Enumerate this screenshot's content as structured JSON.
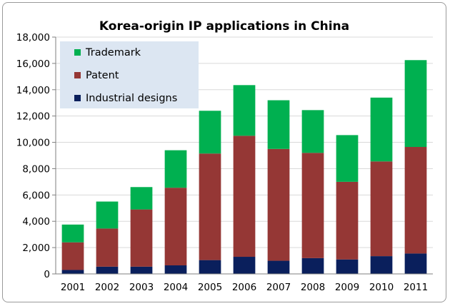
{
  "chart_data": {
    "type": "bar",
    "stacked": true,
    "title": "Korea-origin IP applications in China",
    "xlabel": "",
    "ylabel": "",
    "categories": [
      "2001",
      "2002",
      "2003",
      "2004",
      "2005",
      "2006",
      "2007",
      "2008",
      "2009",
      "2010",
      "2011"
    ],
    "ylim": [
      0,
      18000
    ],
    "yticks": [
      "0",
      "2,000",
      "4,000",
      "6,000",
      "8,000",
      "10,000",
      "12,000",
      "14,000",
      "16,000",
      "18,000"
    ],
    "grid": true,
    "legend": "top-left",
    "series": [
      {
        "name": "Industrial designs",
        "color": "#0a1f5c",
        "values": [
          300,
          550,
          550,
          650,
          1050,
          1300,
          1000,
          1200,
          1100,
          1350,
          1550
        ]
      },
      {
        "name": "Patent",
        "color": "#953735",
        "values": [
          2100,
          2900,
          4350,
          5900,
          8100,
          9200,
          8500,
          8000,
          5900,
          7200,
          8100
        ]
      },
      {
        "name": "Trademark",
        "color": "#00b050",
        "values": [
          1350,
          2050,
          1700,
          2850,
          3250,
          3850,
          3700,
          3250,
          3550,
          4850,
          6600
        ]
      }
    ],
    "legend_order": [
      "Trademark",
      "Patent",
      "Industrial designs"
    ]
  }
}
